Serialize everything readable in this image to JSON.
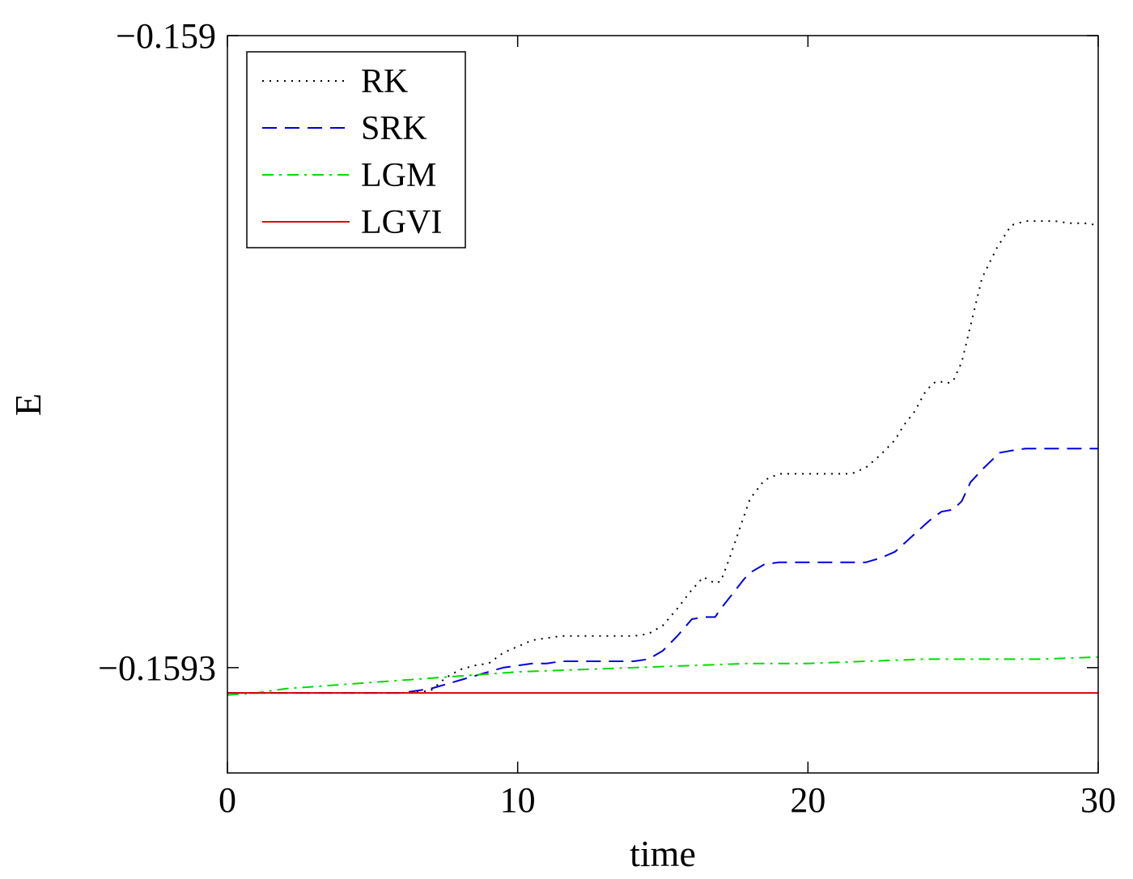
{
  "chart_data": {
    "type": "line",
    "title": "",
    "xlabel": "time",
    "ylabel": "E",
    "xlim": [
      0,
      30
    ],
    "ylim": [
      -0.15935,
      -0.159
    ],
    "xticks": [
      0,
      10,
      20,
      30
    ],
    "yticks": [
      -0.159,
      -0.1593
    ],
    "xtick_labels": [
      "0",
      "10",
      "20",
      "30"
    ],
    "ytick_labels": [
      "−0.159",
      "−0.1593"
    ],
    "grid": false,
    "legend_position": "top-left",
    "series": [
      {
        "name": "RK",
        "color": "#000000",
        "style": "dotted",
        "x": [
          0,
          2,
          4,
          6,
          7,
          7.5,
          8,
          8.5,
          9,
          9.5,
          10,
          10.5,
          11,
          11.5,
          12,
          13,
          14,
          14.5,
          15,
          15.5,
          16,
          16.4,
          16.8,
          17,
          17.3,
          17.7,
          18,
          18.5,
          19,
          19.5,
          20,
          21,
          21.5,
          22,
          22.5,
          23,
          23.3,
          23.7,
          24,
          24.3,
          24.5,
          24.8,
          25,
          25.3,
          25.7,
          26,
          26.5,
          27,
          27.5,
          28,
          28.5,
          29,
          29.5,
          30
        ],
        "y": [
          -0.159312,
          -0.159312,
          -0.159312,
          -0.159312,
          -0.159311,
          -0.159305,
          -0.159301,
          -0.159299,
          -0.159298,
          -0.159293,
          -0.15929,
          -0.159287,
          -0.159286,
          -0.159285,
          -0.159285,
          -0.159285,
          -0.159285,
          -0.159284,
          -0.15928,
          -0.159272,
          -0.159263,
          -0.159257,
          -0.15926,
          -0.159259,
          -0.159248,
          -0.159232,
          -0.15922,
          -0.159211,
          -0.159208,
          -0.159208,
          -0.159208,
          -0.159208,
          -0.159208,
          -0.159205,
          -0.159199,
          -0.159192,
          -0.159185,
          -0.159178,
          -0.15917,
          -0.159165,
          -0.159164,
          -0.159165,
          -0.159164,
          -0.159155,
          -0.159132,
          -0.159115,
          -0.159101,
          -0.15909,
          -0.159088,
          -0.159088,
          -0.159088,
          -0.159089,
          -0.159089,
          -0.15909
        ]
      },
      {
        "name": "SRK",
        "color": "#0000dd",
        "style": "dashed",
        "x": [
          0,
          2,
          4,
          6,
          7,
          7.5,
          8,
          8.5,
          9,
          9.5,
          10,
          10.5,
          11,
          11.5,
          12,
          12.5,
          13,
          13.5,
          14,
          14.5,
          15,
          15.5,
          16,
          16.4,
          16.8,
          17,
          17.4,
          17.8,
          18,
          18.5,
          19,
          19.5,
          20,
          21,
          22,
          22.5,
          23,
          23.4,
          23.8,
          24.2,
          24.6,
          25,
          25.3,
          25.6,
          26,
          26.3,
          26.6,
          27,
          27.5,
          28,
          28.5,
          29,
          29.5,
          30
        ],
        "y": [
          -0.159312,
          -0.159312,
          -0.159312,
          -0.159312,
          -0.15931,
          -0.159308,
          -0.159306,
          -0.159304,
          -0.159302,
          -0.1593,
          -0.159299,
          -0.159298,
          -0.159298,
          -0.159297,
          -0.159297,
          -0.159297,
          -0.159297,
          -0.159297,
          -0.159297,
          -0.159296,
          -0.159292,
          -0.159285,
          -0.159277,
          -0.159276,
          -0.159276,
          -0.159272,
          -0.159265,
          -0.159258,
          -0.159255,
          -0.159251,
          -0.15925,
          -0.15925,
          -0.15925,
          -0.15925,
          -0.15925,
          -0.159248,
          -0.159245,
          -0.15924,
          -0.159235,
          -0.15923,
          -0.159226,
          -0.159225,
          -0.159221,
          -0.159212,
          -0.159206,
          -0.159202,
          -0.159198,
          -0.159197,
          -0.159196,
          -0.159196,
          -0.159196,
          -0.159196,
          -0.159196,
          -0.159196
        ]
      },
      {
        "name": "LGM",
        "color": "#00dd00",
        "style": "dashdot",
        "x": [
          0,
          1,
          2,
          3,
          4,
          5,
          6,
          7,
          8,
          9,
          10,
          12,
          14,
          16,
          18,
          20,
          22,
          24,
          26,
          28,
          30
        ],
        "y": [
          -0.159313,
          -0.159312,
          -0.15931,
          -0.159309,
          -0.159308,
          -0.159307,
          -0.159306,
          -0.159305,
          -0.159304,
          -0.159303,
          -0.159302,
          -0.159301,
          -0.1593,
          -0.159299,
          -0.159298,
          -0.159298,
          -0.159297,
          -0.159296,
          -0.159296,
          -0.159296,
          -0.159295
        ]
      },
      {
        "name": "LGVI",
        "color": "#dd0000",
        "style": "solid",
        "x": [
          0,
          30
        ],
        "y": [
          -0.159312,
          -0.159312
        ]
      }
    ]
  }
}
